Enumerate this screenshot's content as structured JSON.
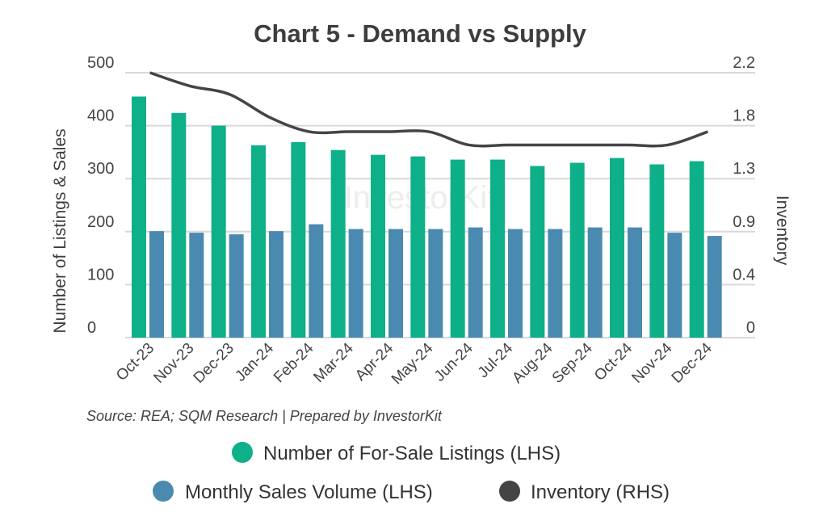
{
  "chart_data": {
    "type": "bar",
    "title": "Chart 5 - Demand vs Supply",
    "source": "Source: REA; SQM Research | Prepared by InvestorKit",
    "watermark": "InvestorKit",
    "ylabel": "Number of Listings & Sales",
    "y2label": "Inventory",
    "ylim": [
      0,
      500
    ],
    "y2lim": [
      0,
      2.2
    ],
    "yticks": [
      "0",
      "100",
      "200",
      "300",
      "400",
      "500"
    ],
    "y2ticks": [
      "0",
      "0.4",
      "0.9",
      "1.3",
      "1.8",
      "2.2"
    ],
    "grid": true,
    "legend_position": "bottom",
    "categories": [
      "Oct-23",
      "Nov-23",
      "Dec-23",
      "Jan-24",
      "Feb-24",
      "Mar-24",
      "Apr-24",
      "May-24",
      "Jun-24",
      "Jul-24",
      "Aug-24",
      "Sep-24",
      "Oct-24",
      "Nov-24",
      "Dec-24"
    ],
    "series": [
      {
        "name": "Number of For-Sale Listings (LHS)",
        "type": "bar",
        "axis": "left",
        "color": "#0db088",
        "values": [
          455,
          424,
          400,
          363,
          369,
          354,
          345,
          342,
          336,
          336,
          324,
          330,
          339,
          327,
          333
        ]
      },
      {
        "name": "Monthly Sales Volume (LHS)",
        "type": "bar",
        "axis": "left",
        "color": "#4a8ab0",
        "values": [
          201,
          198,
          195,
          201,
          214,
          205,
          205,
          205,
          208,
          205,
          205,
          208,
          208,
          198,
          192
        ]
      },
      {
        "name": "Inventory (RHS)",
        "type": "line",
        "axis": "right",
        "color": "#444444",
        "values": [
          2.2,
          2.09,
          2.02,
          1.83,
          1.71,
          1.71,
          1.71,
          1.71,
          1.6,
          1.6,
          1.6,
          1.6,
          1.6,
          1.6,
          1.71
        ]
      }
    ]
  }
}
